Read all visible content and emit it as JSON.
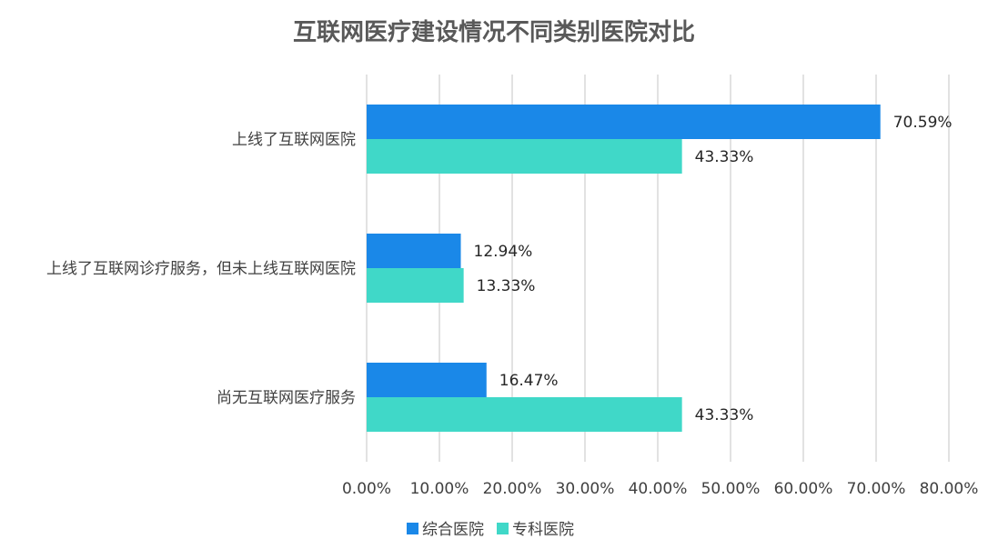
{
  "chart_data": {
    "type": "bar",
    "orientation": "horizontal",
    "title": "互联网医疗建设情况不同类别医院对比",
    "categories": [
      "上线了互联网医院",
      "上线了互联网诊疗服务，但未上线互联网医院",
      "尚无互联网医疗服务"
    ],
    "series": [
      {
        "name": "综合医院",
        "color": "#1a88e8",
        "values": [
          70.59,
          12.94,
          16.47
        ],
        "labels": [
          "70.59%",
          "12.94%",
          "16.47%"
        ]
      },
      {
        "name": "专科医院",
        "color": "#40d8c8",
        "values": [
          43.33,
          13.33,
          43.33
        ],
        "labels": [
          "43.33%",
          "13.33%",
          "43.33%"
        ]
      }
    ],
    "xlim": [
      0,
      80
    ],
    "xticks": [
      "0.00%",
      "10.00%",
      "20.00%",
      "30.00%",
      "40.00%",
      "50.00%",
      "60.00%",
      "70.00%",
      "80.00%"
    ],
    "grid": true,
    "legend_position": "bottom"
  }
}
